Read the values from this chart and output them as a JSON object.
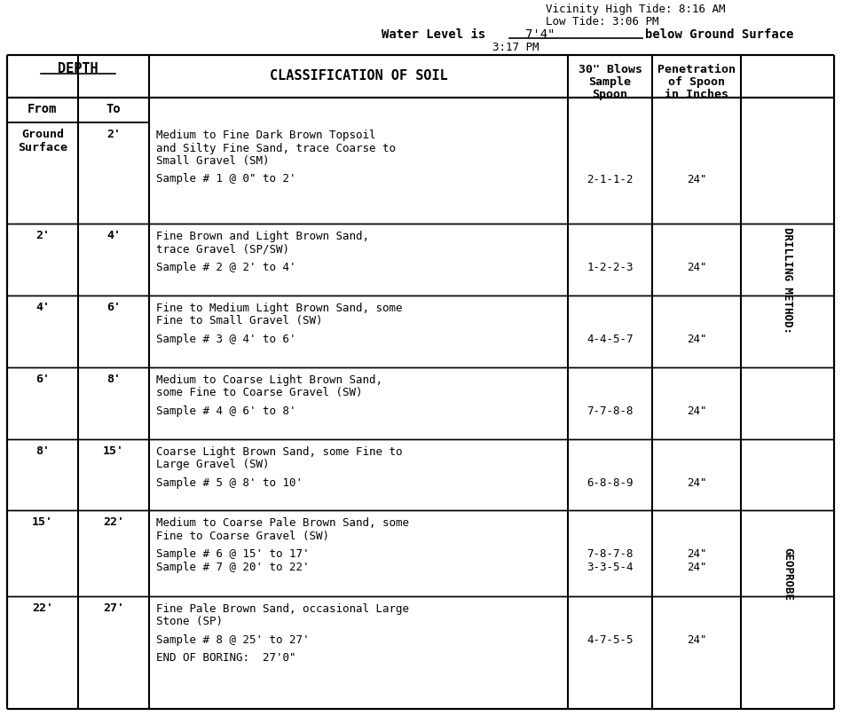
{
  "header_line1": "Vicinity High Tide: 8:16 AM",
  "header_line2": "Low Tide: 3:06 PM",
  "water_level_label": "Water Level is",
  "water_level_value": "7'4\"",
  "water_level_suffix": "below Ground Surface",
  "water_level_time": "3:17 PM",
  "bg_color": "#ffffff",
  "text_color": "#000000",
  "side_label_top": "DRILLING METHOD:",
  "side_label_bot": "GEOPROBE",
  "rows": [
    {
      "from": "Ground\nSurface",
      "to": "2'",
      "desc": [
        "Medium to Fine Dark Brown Topsoil",
        "and Silty Fine Sand, trace Coarse to",
        "Small Gravel (SM)"
      ],
      "samples": [
        {
          "line": "Sample # 1 @ 0\" to 2'",
          "blows": "2-1-1-2",
          "pen": "24\""
        }
      ]
    },
    {
      "from": "2'",
      "to": "4'",
      "desc": [
        "Fine Brown and Light Brown Sand,",
        "trace Gravel (SP/SW)"
      ],
      "samples": [
        {
          "line": "Sample # 2 @ 2' to 4'",
          "blows": "1-2-2-3",
          "pen": "24\""
        }
      ]
    },
    {
      "from": "4'",
      "to": "6'",
      "desc": [
        "Fine to Medium Light Brown Sand, some",
        "Fine to Small Gravel (SW)"
      ],
      "samples": [
        {
          "line": "Sample # 3 @ 4' to 6'",
          "blows": "4-4-5-7",
          "pen": "24\""
        }
      ]
    },
    {
      "from": "6'",
      "to": "8'",
      "desc": [
        "Medium to Coarse Light Brown Sand,",
        "some Fine to Coarse Gravel (SW)"
      ],
      "samples": [
        {
          "line": "Sample # 4 @ 6' to 8'",
          "blows": "7-7-8-8",
          "pen": "24\""
        }
      ]
    },
    {
      "from": "8'",
      "to": "15'",
      "desc": [
        "Coarse Light Brown Sand, some Fine to",
        "Large Gravel (SW)"
      ],
      "samples": [
        {
          "line": "Sample # 5 @ 8' to 10'",
          "blows": "6-8-8-9",
          "pen": "24\""
        }
      ]
    },
    {
      "from": "15'",
      "to": "22'",
      "desc": [
        "Medium to Coarse Pale Brown Sand, some",
        "Fine to Coarse Gravel (SW)"
      ],
      "samples": [
        {
          "line": "Sample # 6 @ 15' to 17'",
          "blows": "7-8-7-8",
          "pen": "24\""
        },
        {
          "line": "Sample # 7 @ 20' to 22'",
          "blows": "3-3-5-4",
          "pen": "24\""
        }
      ]
    },
    {
      "from": "22'",
      "to": "27'",
      "desc": [
        "Fine Pale Brown Sand, occasional Large",
        "Stone (SP)"
      ],
      "samples": [
        {
          "line": "Sample # 8 @ 25' to 27'",
          "blows": "4-7-5-5",
          "pen": "24\""
        }
      ],
      "end_boring": "END OF BORING:  27'0\""
    }
  ]
}
